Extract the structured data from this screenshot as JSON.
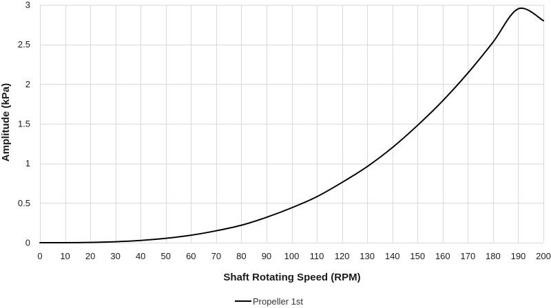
{
  "chart_data": {
    "type": "line",
    "title": "",
    "xlabel": "Shaft Rotating Speed (RPM)",
    "ylabel": "Amplitude (kPa)",
    "xlim": [
      0,
      200
    ],
    "ylim": [
      0,
      3
    ],
    "x_ticks": [
      0,
      10,
      20,
      30,
      40,
      50,
      60,
      70,
      80,
      90,
      100,
      110,
      120,
      130,
      140,
      150,
      160,
      170,
      180,
      190,
      200
    ],
    "y_ticks": [
      0,
      0.5,
      1,
      1.5,
      2,
      2.5,
      3
    ],
    "grid": true,
    "legend_position": "bottom",
    "colors": {
      "line": "#000000",
      "grid": "#d9d9d9"
    },
    "series": [
      {
        "name": "Propeller 1st",
        "x": [
          0,
          10,
          20,
          30,
          40,
          50,
          60,
          70,
          80,
          90,
          100,
          110,
          120,
          130,
          140,
          150,
          160,
          170,
          180,
          190,
          200
        ],
        "values": [
          0,
          0.0004,
          0.0035,
          0.012,
          0.028,
          0.055,
          0.094,
          0.15,
          0.22,
          0.32,
          0.44,
          0.58,
          0.76,
          0.96,
          1.2,
          1.48,
          1.79,
          2.14,
          2.53,
          2.95,
          2.8
        ]
      }
    ]
  }
}
